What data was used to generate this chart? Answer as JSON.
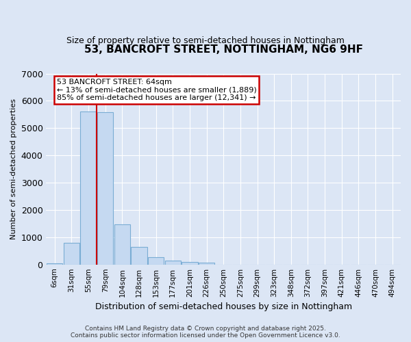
{
  "title": "53, BANCROFT STREET, NOTTINGHAM, NG6 9HF",
  "subtitle": "Size of property relative to semi-detached houses in Nottingham",
  "xlabel": "Distribution of semi-detached houses by size in Nottingham",
  "ylabel": "Number of semi-detached properties",
  "footer_line1": "Contains HM Land Registry data © Crown copyright and database right 2025.",
  "footer_line2": "Contains public sector information licensed under the Open Government Licence v3.0.",
  "categories": [
    "6sqm",
    "31sqm",
    "55sqm",
    "79sqm",
    "104sqm",
    "128sqm",
    "153sqm",
    "177sqm",
    "201sqm",
    "226sqm",
    "250sqm",
    "275sqm",
    "299sqm",
    "323sqm",
    "348sqm",
    "372sqm",
    "397sqm",
    "421sqm",
    "446sqm",
    "470sqm",
    "494sqm"
  ],
  "values": [
    40,
    800,
    5600,
    5580,
    1480,
    650,
    270,
    150,
    90,
    70,
    0,
    0,
    0,
    0,
    0,
    0,
    0,
    0,
    0,
    0,
    0
  ],
  "bar_color": "#c5d9f1",
  "bar_edge_color": "#7aadd4",
  "background_color": "#dce6f5",
  "grid_color": "#ffffff",
  "red_line_x": 2.5,
  "annotation_text_line1": "53 BANCROFT STREET: 64sqm",
  "annotation_text_line2": "← 13% of semi-detached houses are smaller (1,889)",
  "annotation_text_line3": "85% of semi-detached houses are larger (12,341) →",
  "annotation_box_color": "#ffffff",
  "annotation_border_color": "#cc0000",
  "red_line_color": "#cc0000",
  "ylim": [
    0,
    7000
  ],
  "yticks": [
    0,
    1000,
    2000,
    3000,
    4000,
    5000,
    6000,
    7000
  ]
}
